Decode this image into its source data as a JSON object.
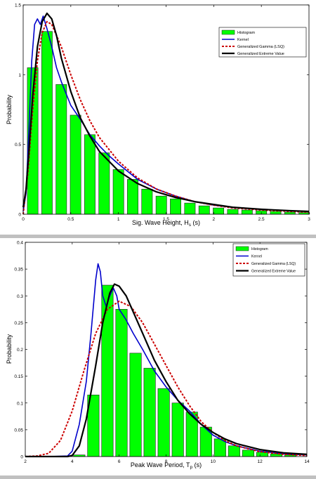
{
  "colors": {
    "histogram": "#00ff00",
    "histogram_edge": "#222222",
    "kernel": "#0000cc",
    "gamma": "#cc0000",
    "gev": "#000000",
    "axes": "#000000"
  },
  "chart_data": [
    {
      "type": "bar",
      "title": "",
      "xlabel_main": "Sig. Wave Height, H",
      "xlabel_sub": "s",
      "xlabel_tail": " (s)",
      "ylabel": "Probability",
      "xlim": [
        0,
        3
      ],
      "ylim": [
        0,
        1.5
      ],
      "xticks": [
        0,
        0.5,
        1,
        1.5,
        2,
        2.5,
        3
      ],
      "xtick_labels": [
        "0",
        "0.5",
        "1",
        "1.5",
        "2",
        "2.5",
        "3"
      ],
      "yticks": [
        0,
        0.5,
        1,
        1.5
      ],
      "ytick_labels": [
        "0",
        "0.5",
        "1",
        "1.5"
      ],
      "grid": false,
      "legend_placement": "top-right",
      "legend": [
        "Histogram",
        "Kernel",
        "Generalized Gamma (LSQ)",
        "Generalized Extreme Value"
      ],
      "bin_width": 0.15,
      "bar_width_fraction": 0.75,
      "histogram": {
        "x": [
          0.1,
          0.25,
          0.4,
          0.55,
          0.7,
          0.85,
          1.0,
          1.15,
          1.3,
          1.45,
          1.6,
          1.75,
          1.9,
          2.05,
          2.2,
          2.35,
          2.5,
          2.65,
          2.8,
          2.95
        ],
        "values": [
          1.05,
          1.31,
          0.93,
          0.71,
          0.57,
          0.44,
          0.32,
          0.25,
          0.18,
          0.13,
          0.11,
          0.08,
          0.06,
          0.045,
          0.035,
          0.03,
          0.025,
          0.02,
          0.015,
          0.012
        ]
      },
      "series": [
        {
          "name": "Kernel",
          "x": [
            0,
            0.03,
            0.06,
            0.09,
            0.12,
            0.15,
            0.18,
            0.21,
            0.25,
            0.3,
            0.35,
            0.4,
            0.5,
            0.6,
            0.7,
            0.8,
            0.9,
            1.0,
            1.2,
            1.4,
            1.6,
            1.8,
            2.0,
            2.2,
            2.5,
            2.8,
            3.0
          ],
          "values": [
            0.02,
            0.15,
            0.6,
            1.1,
            1.36,
            1.4,
            1.36,
            1.42,
            1.33,
            1.2,
            1.05,
            0.95,
            0.78,
            0.68,
            0.57,
            0.49,
            0.42,
            0.36,
            0.25,
            0.18,
            0.13,
            0.09,
            0.065,
            0.05,
            0.035,
            0.025,
            0.02
          ]
        },
        {
          "name": "Generalized Gamma (LSQ)",
          "x": [
            0,
            0.05,
            0.1,
            0.15,
            0.2,
            0.25,
            0.3,
            0.4,
            0.5,
            0.6,
            0.7,
            0.8,
            1.0,
            1.2,
            1.4,
            1.6,
            1.8,
            2.0,
            2.2,
            2.5,
            2.8,
            3.0
          ],
          "values": [
            0,
            0.3,
            0.75,
            1.1,
            1.3,
            1.38,
            1.36,
            1.2,
            1.0,
            0.82,
            0.67,
            0.55,
            0.38,
            0.26,
            0.18,
            0.13,
            0.09,
            0.065,
            0.045,
            0.03,
            0.02,
            0.015
          ]
        },
        {
          "name": "Generalized Extreme Value",
          "x": [
            0,
            0.03,
            0.06,
            0.1,
            0.15,
            0.2,
            0.25,
            0.3,
            0.35,
            0.4,
            0.5,
            0.6,
            0.7,
            0.8,
            1.0,
            1.2,
            1.4,
            1.6,
            1.8,
            2.0,
            2.2,
            2.5,
            2.8,
            3.0
          ],
          "values": [
            0.05,
            0.18,
            0.45,
            0.85,
            1.2,
            1.38,
            1.44,
            1.4,
            1.28,
            1.12,
            0.88,
            0.69,
            0.56,
            0.45,
            0.31,
            0.22,
            0.16,
            0.12,
            0.09,
            0.07,
            0.05,
            0.035,
            0.025,
            0.02
          ]
        }
      ]
    },
    {
      "type": "bar",
      "title": "",
      "xlabel_main": "Peak Wave Period, T",
      "xlabel_sub": "p",
      "xlabel_tail": " (s)",
      "ylabel": "Probability",
      "xlim": [
        2,
        14
      ],
      "ylim": [
        0,
        0.4
      ],
      "xticks": [
        2,
        4,
        6,
        8,
        10,
        12,
        14
      ],
      "xtick_labels": [
        "2",
        "4",
        "6",
        "8",
        "10",
        "12",
        "14"
      ],
      "yticks": [
        0,
        0.05,
        0.1,
        0.15,
        0.2,
        0.25,
        0.3,
        0.35,
        0.4
      ],
      "ytick_labels": [
        "0",
        "0.05",
        "0.1",
        "0.15",
        "0.2",
        "0.25",
        "0.3",
        "0.35",
        "0.4"
      ],
      "grid": false,
      "legend_placement": "top-right",
      "legend": [
        "Histogram",
        "Kernel",
        "Generalized Gamma (LSQ)",
        "Generalized Extreme Value"
      ],
      "bin_width": 0.6,
      "bar_width_fraction": 0.82,
      "histogram": {
        "x": [
          4.3,
          4.9,
          5.5,
          6.1,
          6.7,
          7.3,
          7.9,
          8.5,
          9.1,
          9.7,
          10.3,
          10.9,
          11.5,
          12.1,
          12.7,
          13.3
        ],
        "values": [
          0.003,
          0.115,
          0.32,
          0.275,
          0.193,
          0.165,
          0.127,
          0.1,
          0.083,
          0.055,
          0.033,
          0.02,
          0.012,
          0.008,
          0.005,
          0.003
        ]
      },
      "series": [
        {
          "name": "Kernel",
          "x": [
            2,
            3,
            3.8,
            4.0,
            4.3,
            4.6,
            4.8,
            5.0,
            5.1,
            5.2,
            5.3,
            5.45,
            5.6,
            5.75,
            5.9,
            6.0,
            6.3,
            6.6,
            7.0,
            7.5,
            8.0,
            8.5,
            9.0,
            9.5,
            10,
            10.5,
            11,
            12,
            13,
            14
          ],
          "values": [
            0,
            0,
            0.001,
            0.01,
            0.06,
            0.14,
            0.23,
            0.33,
            0.36,
            0.345,
            0.3,
            0.28,
            0.3,
            0.315,
            0.3,
            0.275,
            0.255,
            0.23,
            0.2,
            0.16,
            0.13,
            0.105,
            0.085,
            0.06,
            0.04,
            0.028,
            0.02,
            0.01,
            0.005,
            0.003
          ]
        },
        {
          "name": "Generalized Gamma (LSQ)",
          "x": [
            2,
            2.5,
            3,
            3.5,
            4,
            4.5,
            5,
            5.5,
            6,
            6.5,
            7,
            7.5,
            8,
            8.5,
            9,
            9.5,
            10,
            10.5,
            11,
            12,
            13,
            14
          ],
          "values": [
            0,
            0.001,
            0.006,
            0.03,
            0.085,
            0.16,
            0.23,
            0.275,
            0.29,
            0.28,
            0.25,
            0.21,
            0.17,
            0.13,
            0.095,
            0.065,
            0.045,
            0.03,
            0.02,
            0.009,
            0.004,
            0.002
          ]
        },
        {
          "name": "Generalized Extreme Value",
          "x": [
            2,
            3,
            3.8,
            4.0,
            4.3,
            4.6,
            5.0,
            5.3,
            5.6,
            5.8,
            6.0,
            6.3,
            6.6,
            7.0,
            7.5,
            8.0,
            8.5,
            9.0,
            9.5,
            10,
            10.5,
            11,
            12,
            13,
            14
          ],
          "values": [
            0,
            0,
            0,
            0.002,
            0.02,
            0.07,
            0.17,
            0.25,
            0.305,
            0.322,
            0.318,
            0.3,
            0.27,
            0.23,
            0.18,
            0.14,
            0.105,
            0.08,
            0.06,
            0.045,
            0.033,
            0.024,
            0.013,
            0.007,
            0.004
          ]
        }
      ]
    }
  ]
}
